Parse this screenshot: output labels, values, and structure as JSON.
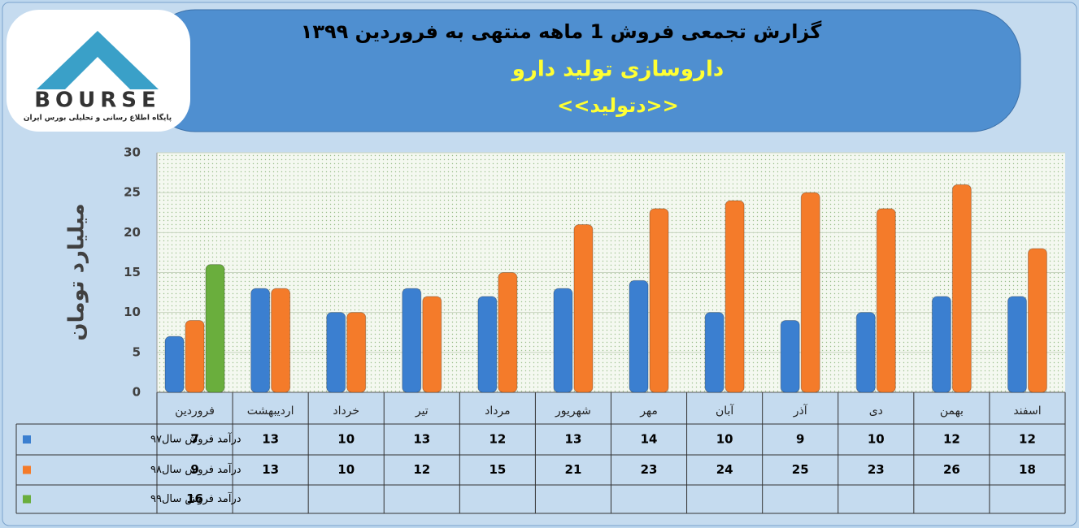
{
  "logo": {
    "name": "BOURSE",
    "tagline": "پایگاه اطلاع رسانی و تحلیلی بورس ایران"
  },
  "chart_data": {
    "type": "bar",
    "title": "گزارش تجمعی فروش  1 ماهه منتهی به فروردین ۱۳۹۹",
    "subtitles": [
      "داروسازی تولید دارو",
      "<<دتولید>>"
    ],
    "ylabel": "میلیارد تومان",
    "categories": [
      "فروردین",
      "اردیبهشت",
      "خرداد",
      "تیر",
      "مرداد",
      "شهریور",
      "مهر",
      "آبان",
      "آذر",
      "دی",
      "بهمن",
      "اسفند"
    ],
    "series": [
      {
        "name": "درآمد فروش سال۹۷",
        "color": "#3b7fd0",
        "values": [
          7,
          13,
          10,
          13,
          12,
          13,
          14,
          10,
          9,
          10,
          12,
          12
        ]
      },
      {
        "name": "درآمد فروش سال۹۸",
        "color": "#f47b2a",
        "values": [
          9,
          13,
          10,
          12,
          15,
          21,
          23,
          24,
          25,
          23,
          26,
          18
        ]
      },
      {
        "name": "درآمد فروش سال۹۹",
        "color": "#6aae3d",
        "values": [
          16,
          null,
          null,
          null,
          null,
          null,
          null,
          null,
          null,
          null,
          null,
          null
        ]
      }
    ],
    "ylim": [
      0,
      30
    ],
    "yticks": [
      0,
      5,
      10,
      15,
      20,
      25,
      30
    ],
    "grid": true
  }
}
